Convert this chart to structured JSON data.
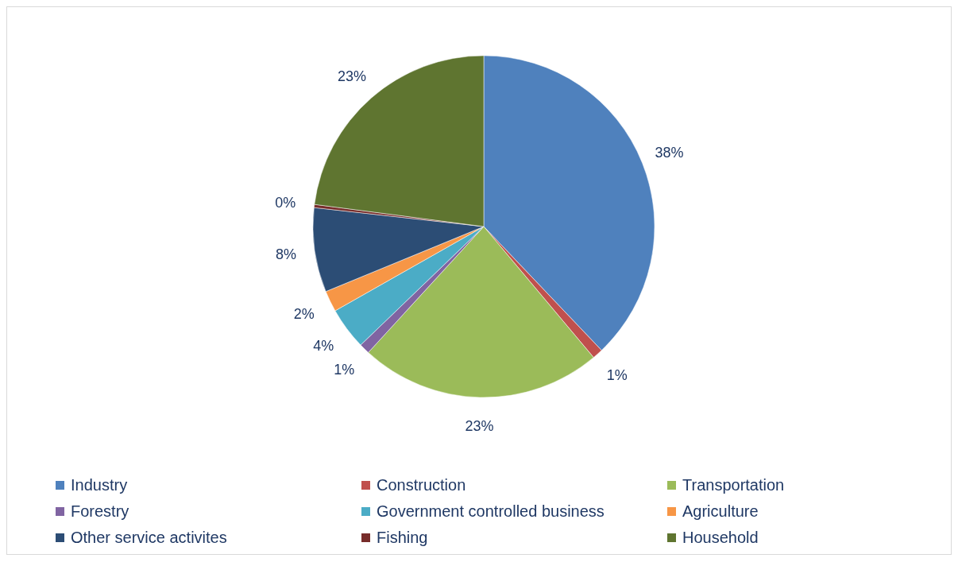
{
  "chart_data": {
    "type": "pie",
    "categories": [
      "Industry",
      "Construction",
      "Transportation",
      "Forestry",
      "Government controlled business",
      "Agriculture",
      "Other service activites",
      "Fishing",
      "Household"
    ],
    "values": [
      38,
      1,
      23,
      1,
      4,
      2,
      8,
      0.3,
      23
    ],
    "value_labels": [
      "38%",
      "1%",
      "23%",
      "1%",
      "4%",
      "2%",
      "8%",
      "0%",
      "23%"
    ],
    "colors": [
      "#4f81bd",
      "#c0504d",
      "#9bbb59",
      "#8064a2",
      "#4bacc6",
      "#f79646",
      "#2c4d75",
      "#772c2a",
      "#5f7530"
    ],
    "legend": "bottom"
  }
}
